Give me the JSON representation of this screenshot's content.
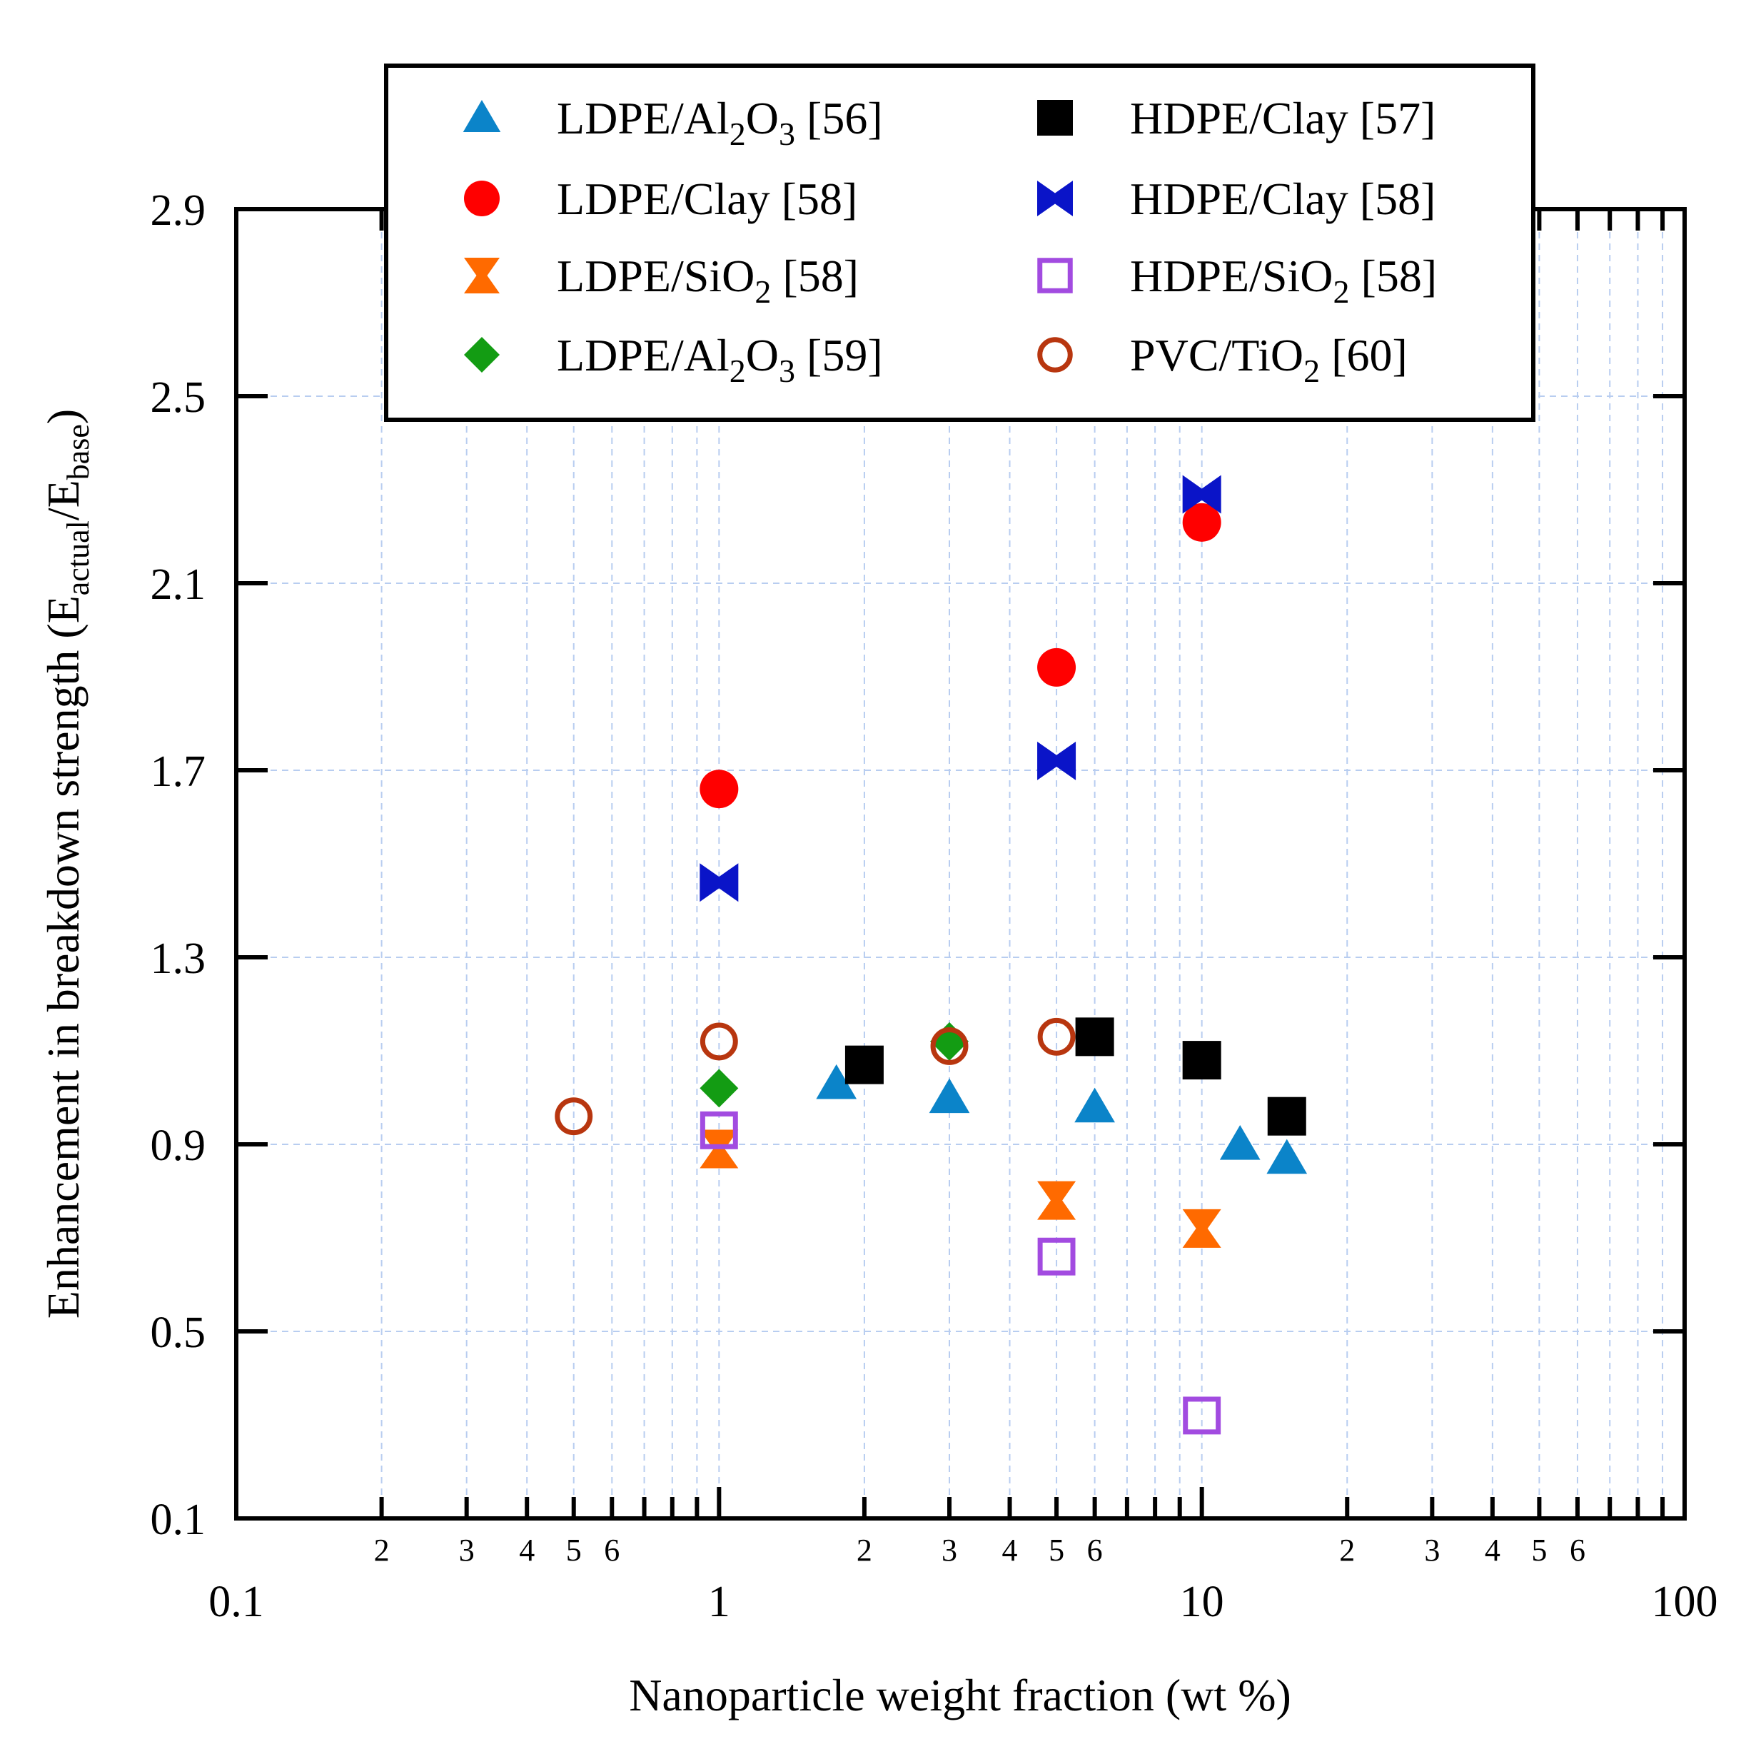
{
  "chart_data": {
    "type": "scatter",
    "xlabel": "Nanoparticle weight fraction (wt %)",
    "ylabel": {
      "text": "Enhancement in breakdown strength (E",
      "sub1": "actual",
      "mid": "/E",
      "sub2": "base",
      "end": ")"
    },
    "x_scale": "log",
    "xlim": [
      0.1,
      100
    ],
    "ylim": [
      0.1,
      2.9
    ],
    "x_major_ticks": [
      {
        "value": 0.1,
        "label": "0.1"
      },
      {
        "value": 1,
        "label": "1"
      },
      {
        "value": 10,
        "label": "10"
      },
      {
        "value": 100,
        "label": "100"
      }
    ],
    "x_minor_ticks": [
      {
        "value": 0.2,
        "label": "2"
      },
      {
        "value": 0.3,
        "label": "3"
      },
      {
        "value": 0.4,
        "label": "4"
      },
      {
        "value": 0.5,
        "label": "5"
      },
      {
        "value": 0.6,
        "label": "6"
      },
      {
        "value": 0.7,
        "label": ""
      },
      {
        "value": 0.8,
        "label": ""
      },
      {
        "value": 0.9,
        "label": ""
      },
      {
        "value": 2,
        "label": "2"
      },
      {
        "value": 3,
        "label": "3"
      },
      {
        "value": 4,
        "label": "4"
      },
      {
        "value": 5,
        "label": "5"
      },
      {
        "value": 6,
        "label": "6"
      },
      {
        "value": 7,
        "label": ""
      },
      {
        "value": 8,
        "label": ""
      },
      {
        "value": 9,
        "label": ""
      },
      {
        "value": 20,
        "label": "2"
      },
      {
        "value": 30,
        "label": "3"
      },
      {
        "value": 40,
        "label": "4"
      },
      {
        "value": 50,
        "label": "5"
      },
      {
        "value": 60,
        "label": "6"
      },
      {
        "value": 70,
        "label": ""
      },
      {
        "value": 80,
        "label": ""
      },
      {
        "value": 90,
        "label": ""
      }
    ],
    "y_ticks": [
      {
        "value": 0.1,
        "label": "0.1"
      },
      {
        "value": 0.5,
        "label": "0.5"
      },
      {
        "value": 0.9,
        "label": "0.9"
      },
      {
        "value": 1.3,
        "label": "1.3"
      },
      {
        "value": 1.7,
        "label": "1.7"
      },
      {
        "value": 2.1,
        "label": "2.1"
      },
      {
        "value": 2.5,
        "label": "2.5"
      },
      {
        "value": 2.9,
        "label": "2.9"
      }
    ],
    "grid": true,
    "legend_position": "top",
    "series": [
      {
        "name": "LDPE/Al2O3 [56]",
        "label": {
          "pre": "LDPE/Al",
          "s1": "2",
          "mid": "O",
          "s2": "3",
          "post": " [56]"
        },
        "marker": "triangle",
        "color": "#0b84c9",
        "x": [
          1.75,
          3,
          6,
          12,
          15
        ],
        "y": [
          1.03,
          1.0,
          0.98,
          0.9,
          0.87
        ]
      },
      {
        "name": "HDPE/Clay [57]",
        "label": {
          "pre": "HDPE/Clay [57]",
          "s1": "",
          "mid": "",
          "s2": "",
          "post": ""
        },
        "marker": "square",
        "color": "#000000",
        "x": [
          2,
          6,
          10,
          15
        ],
        "y": [
          1.07,
          1.13,
          1.08,
          0.96
        ]
      },
      {
        "name": "LDPE/Clay [58]",
        "label": {
          "pre": "LDPE/Clay [58]",
          "s1": "",
          "mid": "",
          "s2": "",
          "post": ""
        },
        "marker": "circle",
        "color": "#ff0000",
        "x": [
          1,
          5,
          10
        ],
        "y": [
          1.66,
          1.92,
          2.23
        ]
      },
      {
        "name": "HDPE/Clay [58]",
        "label": {
          "pre": "HDPE/Clay [58]",
          "s1": "",
          "mid": "",
          "s2": "",
          "post": ""
        },
        "marker": "bowtie",
        "color": "#0a14c8",
        "x": [
          1,
          5,
          10
        ],
        "y": [
          1.46,
          1.72,
          2.29
        ]
      },
      {
        "name": "LDPE/SiO2 [58]",
        "label": {
          "pre": "LDPE/SiO",
          "s1": "2",
          "mid": "",
          "s2": "",
          "post": " [58]"
        },
        "marker": "hourglass",
        "color": "#ff6a00",
        "x": [
          1,
          5,
          10
        ],
        "y": [
          0.89,
          0.78,
          0.72
        ]
      },
      {
        "name": "HDPE/SiO2 [58]",
        "label": {
          "pre": "HDPE/SiO",
          "s1": "2",
          "mid": "",
          "s2": "",
          "post": " [58]"
        },
        "marker": "open-square",
        "color": "#a24be0",
        "x": [
          1,
          5,
          10
        ],
        "y": [
          0.93,
          0.66,
          0.32
        ]
      },
      {
        "name": "LDPE/Al2O3 [59]",
        "label": {
          "pre": "LDPE/Al",
          "s1": "2",
          "mid": "O",
          "s2": "3",
          "post": " [59]"
        },
        "marker": "diamond",
        "color": "#139c13",
        "x": [
          1,
          3
        ],
        "y": [
          1.02,
          1.12
        ]
      },
      {
        "name": "PVC/TiO2 [60]",
        "label": {
          "pre": "PVC/TiO",
          "s1": "2",
          "mid": "",
          "s2": "",
          "post": " [60]"
        },
        "marker": "open-circle",
        "color": "#b8360f",
        "x": [
          0.5,
          1,
          3,
          5
        ],
        "y": [
          0.96,
          1.12,
          1.11,
          1.13
        ]
      }
    ]
  }
}
